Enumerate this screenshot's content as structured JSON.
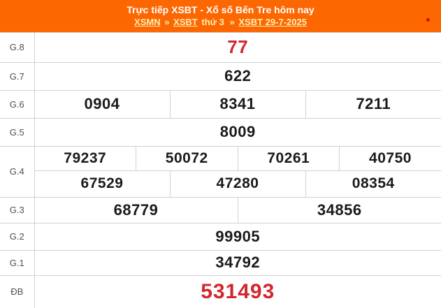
{
  "header": {
    "title": "Trực tiếp XSBT - Xổ số Bến Tre hôm nay",
    "breadcrumb": {
      "segments": [
        {
          "text": "XSMN",
          "link": true
        },
        {
          "text": "»",
          "link": false
        },
        {
          "text": "XSBT",
          "link": true
        },
        {
          "text": "thứ 3",
          "link": false
        },
        {
          "text": "»",
          "link": false
        },
        {
          "text": "XSBT 29-7-2025",
          "link": true
        }
      ]
    },
    "live_indicator": "red-dot"
  },
  "results_table": {
    "rows": [
      {
        "prize": "G.8",
        "id": "g8",
        "highlight": true,
        "lines": [
          [
            "77"
          ]
        ]
      },
      {
        "prize": "G.7",
        "id": "g7",
        "highlight": false,
        "lines": [
          [
            "622"
          ]
        ]
      },
      {
        "prize": "G.6",
        "id": "g6",
        "highlight": false,
        "lines": [
          [
            "0904",
            "8341",
            "7211"
          ]
        ]
      },
      {
        "prize": "G.5",
        "id": "g5",
        "highlight": false,
        "lines": [
          [
            "8009"
          ]
        ]
      },
      {
        "prize": "G.4",
        "id": "g4",
        "highlight": false,
        "lines": [
          [
            "79237",
            "50072",
            "70261",
            "40750"
          ],
          [
            "67529",
            "47280",
            "08354"
          ]
        ]
      },
      {
        "prize": "G.3",
        "id": "g3",
        "highlight": false,
        "lines": [
          [
            "68779",
            "34856"
          ]
        ]
      },
      {
        "prize": "G.2",
        "id": "g2",
        "highlight": false,
        "lines": [
          [
            "99905"
          ]
        ]
      },
      {
        "prize": "G.1",
        "id": "g1",
        "highlight": false,
        "lines": [
          [
            "34792"
          ]
        ]
      },
      {
        "prize": "ĐB",
        "id": "db",
        "highlight": true,
        "lines": [
          [
            "531493"
          ]
        ]
      }
    ]
  },
  "colors": {
    "header_bg": "#fd6702",
    "link": "#ffeeb0",
    "highlight": "#d1282e",
    "number_text": "#1a1a1a",
    "label_text": "#4f4f4f",
    "border": "#d2d2d2"
  }
}
